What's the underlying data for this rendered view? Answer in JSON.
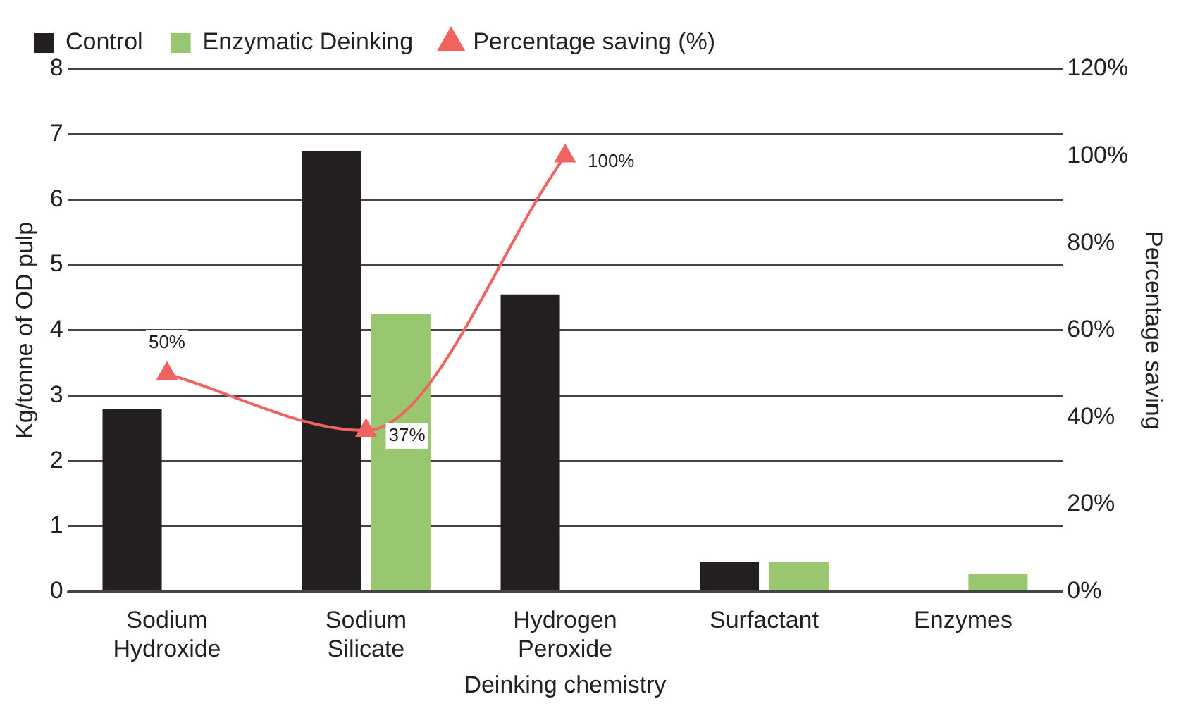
{
  "chart_data": {
    "type": "bar",
    "xlabel": "Deinking chemistry",
    "ylabel": "Kg/tonne of OD pulp",
    "y2label": "Percentage saving",
    "categories": [
      "Sodium Hydroxide",
      "Sodium Silicate",
      "Hydrogen Peroxide",
      "Surfactant",
      "Enzymes"
    ],
    "series": [
      {
        "name": "Control",
        "color": "#231f20",
        "values": [
          2.8,
          6.75,
          4.55,
          0.45,
          null
        ]
      },
      {
        "name": "Enzymatic Deinking",
        "color": "#99c76f",
        "values": [
          null,
          4.25,
          null,
          0.45,
          0.27
        ]
      },
      {
        "name": "Percentage saving (%)",
        "type": "line",
        "axis": "y2",
        "color": "#ef6461",
        "marker": "triangle",
        "values": [
          50,
          37,
          100,
          null,
          null
        ],
        "value_labels": [
          "50%",
          "37%",
          "100%",
          null,
          null
        ]
      }
    ],
    "ylim": [
      0,
      8
    ],
    "yticks": [
      0,
      1,
      2,
      3,
      4,
      5,
      6,
      7,
      8
    ],
    "y2lim": [
      0,
      120
    ],
    "y2ticks": [
      {
        "value": 0,
        "label": "0%"
      },
      {
        "value": 20,
        "label": "20%"
      },
      {
        "value": 40,
        "label": "40%"
      },
      {
        "value": 60,
        "label": "60%"
      },
      {
        "value": 80,
        "label": "80%"
      },
      {
        "value": 100,
        "label": "100%"
      },
      {
        "value": 120,
        "label": "120%"
      }
    ],
    "grid": "y",
    "legend": "top left"
  }
}
